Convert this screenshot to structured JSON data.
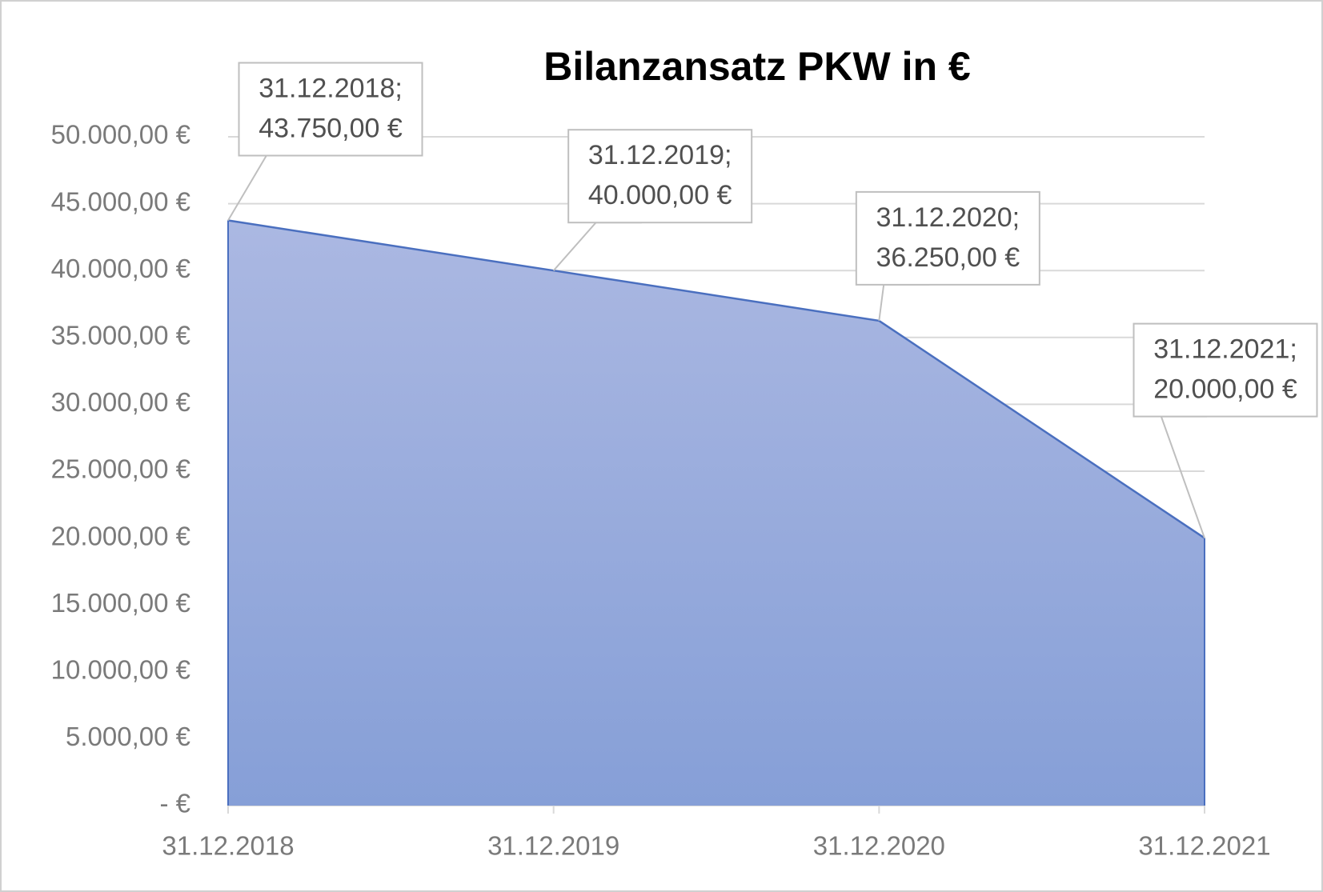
{
  "chart_data": {
    "type": "area",
    "title": "Bilanzansatz PKW in €",
    "categories": [
      "31.12.2018",
      "31.12.2019",
      "31.12.2020",
      "31.12.2021"
    ],
    "values": [
      43750,
      40000,
      36250,
      20000
    ],
    "value_labels": [
      "31.12.2018; 43.750,00 €",
      "31.12.2019; 40.000,00 €",
      "31.12.2020; 36.250,00 €",
      "31.12.2021; 20.000,00 €"
    ],
    "color": "#4a6fbf",
    "ylim": [
      0,
      50000
    ],
    "yticks": [
      {
        "value": 0,
        "label": "-   €"
      },
      {
        "value": 5000,
        "label": "5.000,00 €"
      },
      {
        "value": 10000,
        "label": "10.000,00 €"
      },
      {
        "value": 15000,
        "label": "15.000,00 €"
      },
      {
        "value": 20000,
        "label": "20.000,00 €"
      },
      {
        "value": 25000,
        "label": "25.000,00 €"
      },
      {
        "value": 30000,
        "label": "30.000,00 €"
      },
      {
        "value": 35000,
        "label": "35.000,00 €"
      },
      {
        "value": 40000,
        "label": "40.000,00 €"
      },
      {
        "value": 45000,
        "label": "45.000,00 €"
      },
      {
        "value": 50000,
        "label": "50.000,00 €"
      }
    ],
    "grid": true
  }
}
